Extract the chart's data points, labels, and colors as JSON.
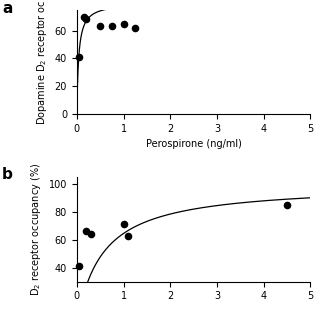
{
  "panel_a": {
    "scatter_x": [
      0.05,
      0.15,
      0.2,
      0.5,
      0.75,
      1.0,
      1.25
    ],
    "scatter_y": [
      41,
      70,
      68,
      63,
      63,
      65,
      62
    ],
    "curve_Bmax": 80,
    "curve_Kd": 0.04,
    "xlim": [
      0,
      5
    ],
    "ylim": [
      0,
      75
    ],
    "yticks": [
      0,
      20,
      40,
      60
    ],
    "xticks": [
      0,
      1,
      2,
      3,
      4,
      5
    ],
    "ylabel": "Dopamine D$_2$ receptor oc",
    "xlabel": "Perospirone (ng/ml)",
    "panel_label": "a"
  },
  "panel_b": {
    "scatter_x": [
      0.05,
      0.2,
      0.3,
      1.0,
      1.1,
      4.5
    ],
    "scatter_y": [
      41,
      66,
      64,
      71,
      63,
      85
    ],
    "curve_Bmax": 100,
    "curve_Kd": 0.55,
    "xlim": [
      0,
      5
    ],
    "ylim": [
      30,
      105
    ],
    "yticks": [
      40,
      60,
      80,
      100
    ],
    "xticks": [
      0,
      1,
      2,
      3,
      4,
      5
    ],
    "ylabel": "D$_2$ receptor occupancy (%)",
    "xlabel": "",
    "panel_label": "b"
  },
  "line_color": "#000000",
  "scatter_color": "#000000",
  "bg_color": "#ffffff",
  "fontsize_label": 7,
  "fontsize_tick": 7,
  "fontsize_panel": 11
}
